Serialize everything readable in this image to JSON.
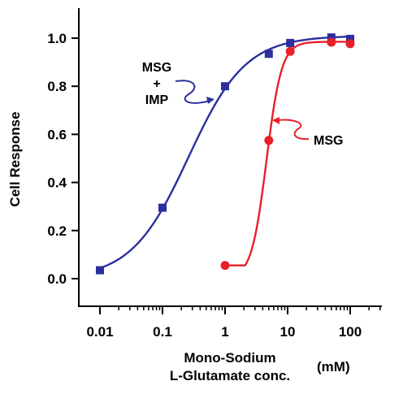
{
  "chart_data": {
    "type": "line",
    "ylabel": "Cell Response",
    "xlabel_lines": [
      "Mono-Sodium",
      "L-Glutamate conc."
    ],
    "xunit": "(mM)",
    "x_scale": "log",
    "xlim": [
      0.006,
      300
    ],
    "ylim": [
      -0.1,
      1.1
    ],
    "x_ticks": [
      0.01,
      0.1,
      1,
      10,
      100
    ],
    "x_tick_labels": [
      "0.01",
      "0.1",
      "1",
      "10",
      "100"
    ],
    "y_ticks": [
      0.0,
      0.2,
      0.4,
      0.6,
      0.8,
      1.0
    ],
    "y_tick_labels": [
      "0.0",
      "0.2",
      "0.4",
      "0.6",
      "0.8",
      "1.0"
    ],
    "grid": false,
    "series": [
      {
        "name": "MSG + IMP",
        "label_lines": [
          "MSG",
          "+",
          "IMP"
        ],
        "color": "#2b2f9e",
        "marker": "square",
        "x": [
          0.01,
          0.1,
          1,
          5,
          11,
          50,
          100
        ],
        "y": [
          0.035,
          0.295,
          0.8,
          0.935,
          0.98,
          1.003,
          0.997
        ]
      },
      {
        "name": "MSG",
        "label_lines": [
          "MSG"
        ],
        "color": "#e8202a",
        "marker": "circle",
        "x": [
          1,
          5,
          11,
          50,
          100
        ],
        "y": [
          0.055,
          0.575,
          0.945,
          0.983,
          0.977
        ]
      }
    ]
  }
}
